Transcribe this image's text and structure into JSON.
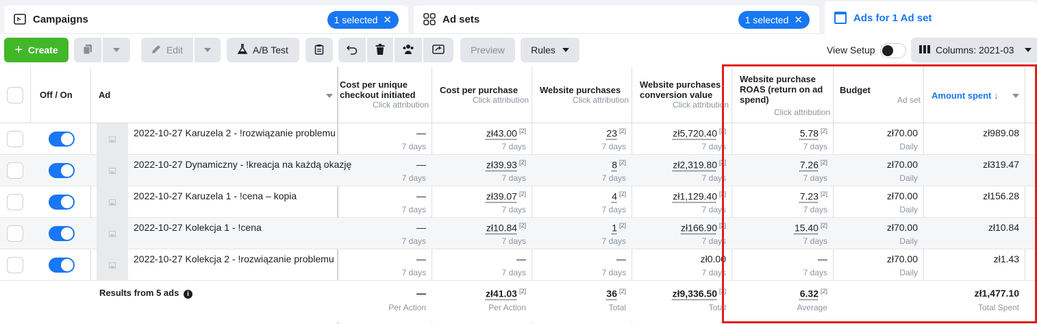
{
  "tabs": [
    {
      "label": "Campaigns",
      "icon": "campaign-folder-icon",
      "selected_badge": "1 selected"
    },
    {
      "label": "Ad sets",
      "icon": "adsets-grid-icon",
      "selected_badge": "1 selected"
    },
    {
      "label": "Ads for 1 Ad set",
      "icon": "ad-window-icon"
    }
  ],
  "toolbar": {
    "create_label": "Create",
    "edit_label": "Edit",
    "abtest_label": "A/B Test",
    "preview_label": "Preview",
    "rules_label": "Rules",
    "view_setup_label": "View Setup",
    "columns_label": "Columns: 2021-03"
  },
  "columns": {
    "off_on": "Off / On",
    "ad": "Ad",
    "cpu_checkout": "Cost per unique checkout initiated",
    "cpu_checkout_sub": "Click attribution",
    "cost_purchase": "Cost per purchase",
    "cost_purchase_sub": "Click attribution",
    "web_purchases": "Website purchases",
    "web_purchases_sub": "Click attribution",
    "conv_value": "Website purchases conversion value",
    "conv_value_sub": "Click attribution",
    "roas": "Website purchase ROAS (return on ad spend)",
    "roas_sub": "Click attribution",
    "budget": "Budget",
    "budget_sub": "Ad set",
    "amount_spent": "Amount spent ↓"
  },
  "rows": [
    {
      "name": "2022-10-27 Karuzela 2 - !rozwiązanie problemu",
      "cpu": "—",
      "cpu_sub": "7 days",
      "cpp": "zł43.00",
      "cpp_note": "[2]",
      "cpp_sub": "7 days",
      "wp": "23",
      "wp_note": "[2]",
      "wp_sub": "7 days",
      "cv": "zł5,720.40",
      "cv_note": "[2]",
      "cv_sub": "7 days",
      "roas": "5.78",
      "roas_note": "[2]",
      "roas_sub": "7 days",
      "budget": "zł70.00",
      "budget_sub": "Daily",
      "spent": "zł989.08"
    },
    {
      "name": "2022-10-27 Dynamiczny - !kreacja na każdą okazję",
      "cpu": "—",
      "cpu_sub": "7 days",
      "cpp": "zł39.93",
      "cpp_note": "[2]",
      "cpp_sub": "7 days",
      "wp": "8",
      "wp_note": "[2]",
      "wp_sub": "7 days",
      "cv": "zł2,319.80",
      "cv_note": "[2]",
      "cv_sub": "7 days",
      "roas": "7.26",
      "roas_note": "[2]",
      "roas_sub": "7 days",
      "budget": "zł70.00",
      "budget_sub": "Daily",
      "spent": "zł319.47"
    },
    {
      "name": "2022-10-27 Karuzela 1 - !cena – kopia",
      "cpu": "—",
      "cpu_sub": "7 days",
      "cpp": "zł39.07",
      "cpp_note": "[2]",
      "cpp_sub": "7 days",
      "wp": "4",
      "wp_note": "[2]",
      "wp_sub": "7 days",
      "cv": "zł1,129.40",
      "cv_note": "[2]",
      "cv_sub": "7 days",
      "roas": "7.23",
      "roas_note": "[2]",
      "roas_sub": "7 days",
      "budget": "zł70.00",
      "budget_sub": "Daily",
      "spent": "zł156.28"
    },
    {
      "name": "2022-10-27 Kolekcja 1 - !cena",
      "cpu": "—",
      "cpu_sub": "7 days",
      "cpp": "zł10.84",
      "cpp_note": "[2]",
      "cpp_sub": "7 days",
      "wp": "1",
      "wp_note": "[2]",
      "wp_sub": "7 days",
      "cv": "zł166.90",
      "cv_note": "[2]",
      "cv_sub": "7 days",
      "roas": "15.40",
      "roas_note": "[2]",
      "roas_sub": "7 days",
      "budget": "zł70.00",
      "budget_sub": "Daily",
      "spent": "zł10.84"
    },
    {
      "name": "2022-10-27 Kolekcja 2 - !rozwiązanie problemu",
      "cpu": "—",
      "cpu_sub": "7 days",
      "cpp": "—",
      "cpp_note": "",
      "cpp_sub": "7 days",
      "wp": "—",
      "wp_note": "",
      "wp_sub": "7 days",
      "cv": "zł0.00",
      "cv_note": "",
      "cv_sub": "7 days",
      "roas": "—",
      "roas_note": "",
      "roas_sub": "7 days",
      "budget": "zł70.00",
      "budget_sub": "Daily",
      "spent": "zł1.43"
    }
  ],
  "totals": {
    "label": "Results from 5 ads",
    "cpu": "—",
    "cpu_sub": "Per Action",
    "cpp": "zł41.03",
    "cpp_note": "[2]",
    "cpp_sub": "Per Action",
    "wp": "36",
    "wp_note": "[2]",
    "wp_sub": "Total",
    "cv": "zł9,336.50",
    "cv_note": "[2]",
    "cv_sub": "Total",
    "roas": "6.32",
    "roas_note": "[2]",
    "roas_sub": "Average",
    "spent": "zł1,477.10",
    "spent_sub": "Total Spent"
  },
  "colors": {
    "accent": "#1877f2",
    "create": "#42b72a",
    "highlight": "#e11d1d"
  }
}
